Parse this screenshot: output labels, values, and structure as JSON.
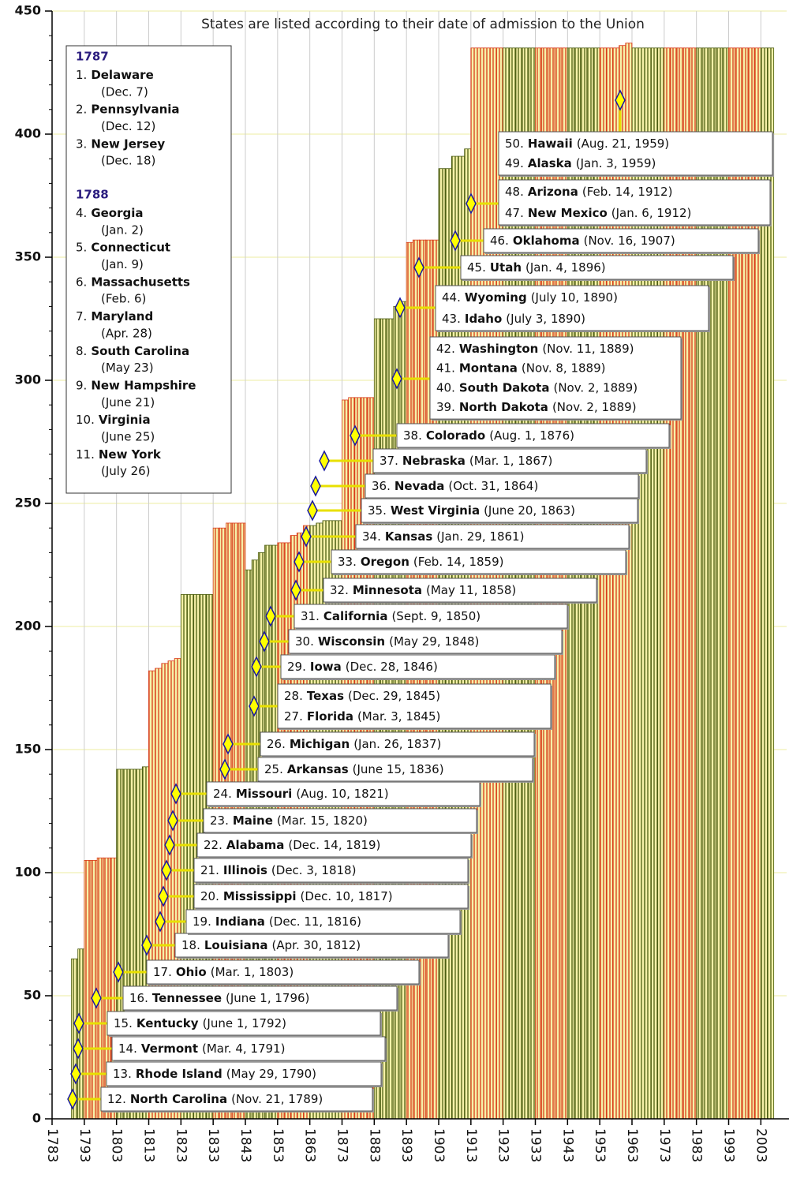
{
  "chart_data": {
    "type": "bar",
    "annotation": "States are listed according to their date of admission to the Union",
    "xlim": [
      1783,
      2011
    ],
    "xticks": [
      1783,
      1793,
      1803,
      1813,
      1823,
      1833,
      1843,
      1853,
      1863,
      1873,
      1883,
      1893,
      1903,
      1913,
      1923,
      1933,
      1943,
      1953,
      1963,
      1973,
      1983,
      1993,
      2003
    ],
    "ylim": [
      0,
      450
    ],
    "yticks": [
      0,
      50,
      100,
      150,
      200,
      250,
      300,
      350,
      400,
      450
    ],
    "yminorticks": [
      0,
      10,
      20,
      30,
      40,
      50,
      60,
      70,
      80,
      90,
      100,
      110,
      120,
      130,
      140,
      150,
      160,
      170,
      180,
      190,
      200,
      210,
      220,
      230,
      240,
      250,
      260,
      270,
      280,
      290,
      300,
      310,
      320,
      330,
      340,
      350,
      360,
      370,
      380,
      390,
      400,
      410,
      420,
      430,
      440,
      450
    ],
    "grid": true,
    "x": [
      1789,
      1791,
      1793,
      1795,
      1797,
      1799,
      1801,
      1803,
      1805,
      1807,
      1809,
      1811,
      1813,
      1815,
      1817,
      1819,
      1821,
      1823,
      1825,
      1827,
      1829,
      1831,
      1833,
      1835,
      1837,
      1839,
      1841,
      1843,
      1845,
      1847,
      1849,
      1851,
      1853,
      1855,
      1857,
      1859,
      1861,
      1863,
      1865,
      1867,
      1869,
      1871,
      1873,
      1875,
      1877,
      1879,
      1881,
      1883,
      1885,
      1887,
      1889,
      1891,
      1893,
      1895,
      1897,
      1899,
      1901,
      1903,
      1905,
      1907,
      1909,
      1911,
      1913,
      1915,
      1917,
      1919,
      1921,
      1923,
      1925,
      1927,
      1929,
      1931,
      1933,
      1935,
      1937,
      1939,
      1941,
      1943,
      1945,
      1947,
      1949,
      1951,
      1953,
      1955,
      1957,
      1959,
      1961,
      1963,
      1965,
      1967,
      1969,
      1971,
      1973,
      1975,
      1977,
      1979,
      1981,
      1983,
      1985,
      1987,
      1989,
      1991,
      1993,
      1995,
      1997,
      1999,
      2001,
      2003,
      2005
    ],
    "values": [
      65,
      69,
      105,
      105,
      106,
      106,
      106,
      142,
      142,
      142,
      142,
      143,
      182,
      183,
      185,
      186,
      187,
      213,
      213,
      213,
      213,
      213,
      240,
      240,
      242,
      242,
      242,
      223,
      227,
      230,
      233,
      233,
      234,
      234,
      237,
      238,
      241,
      241,
      242,
      243,
      243,
      243,
      292,
      293,
      293,
      293,
      293,
      325,
      325,
      325,
      330,
      332,
      356,
      357,
      357,
      357,
      357,
      386,
      386,
      391,
      391,
      394,
      435,
      435,
      435,
      435,
      435,
      435,
      435,
      435,
      435,
      435,
      435,
      435,
      435,
      435,
      435,
      435,
      435,
      435,
      435,
      435,
      435,
      435,
      435,
      436,
      437,
      435,
      435,
      435,
      435,
      435,
      435,
      435,
      435,
      435,
      435,
      435,
      435,
      435,
      435,
      435,
      435,
      435,
      435,
      435,
      435,
      435,
      435
    ],
    "colors": [
      "#4d5e12",
      "#4d5e12",
      "#d93b1a",
      "#d93b1a",
      "#d93b1a",
      "#d93b1a",
      "#d93b1a",
      "#4d5e12",
      "#4d5e12",
      "#4d5e12",
      "#4d5e12",
      "#4d5e12",
      "#d93b1a",
      "#d93b1a",
      "#d93b1a",
      "#d93b1a",
      "#d93b1a",
      "#4d5e12",
      "#4d5e12",
      "#4d5e12",
      "#4d5e12",
      "#4d5e12",
      "#d93b1a",
      "#d93b1a",
      "#d93b1a",
      "#d93b1a",
      "#d93b1a",
      "#4d5e12",
      "#4d5e12",
      "#4d5e12",
      "#4d5e12",
      "#4d5e12",
      "#d93b1a",
      "#d93b1a",
      "#d93b1a",
      "#d93b1a",
      "#d93b1a",
      "#4d5e12",
      "#4d5e12",
      "#4d5e12",
      "#4d5e12",
      "#4d5e12",
      "#d93b1a",
      "#d93b1a",
      "#d93b1a",
      "#d93b1a",
      "#d93b1a",
      "#4d5e12",
      "#4d5e12",
      "#4d5e12",
      "#4d5e12",
      "#4d5e12",
      "#d93b1a",
      "#d93b1a",
      "#d93b1a",
      "#d93b1a",
      "#d93b1a",
      "#4d5e12",
      "#4d5e12",
      "#4d5e12",
      "#4d5e12",
      "#4d5e12",
      "#d93b1a",
      "#d93b1a",
      "#d93b1a",
      "#d93b1a",
      "#d93b1a",
      "#4d5e12",
      "#4d5e12",
      "#4d5e12",
      "#4d5e12",
      "#4d5e12",
      "#d93b1a",
      "#d93b1a",
      "#d93b1a",
      "#d93b1a",
      "#d93b1a",
      "#4d5e12",
      "#4d5e12",
      "#4d5e12",
      "#4d5e12",
      "#4d5e12",
      "#d93b1a",
      "#d93b1a",
      "#d93b1a",
      "#d93b1a",
      "#d93b1a",
      "#4d5e12",
      "#4d5e12",
      "#4d5e12",
      "#4d5e12",
      "#4d5e12",
      "#d93b1a",
      "#d93b1a",
      "#d93b1a",
      "#d93b1a",
      "#d93b1a",
      "#4d5e12",
      "#4d5e12",
      "#4d5e12",
      "#4d5e12",
      "#4d5e12",
      "#d93b1a",
      "#d93b1a",
      "#d93b1a",
      "#d93b1a",
      "#d93b1a",
      "#4d5e12",
      "#4d5e12"
    ],
    "legend_box": [
      {
        "year": "1787",
        "states": [
          {
            "num": "1.",
            "name": "Delaware",
            "date": "(Dec. 7)"
          },
          {
            "num": "2.",
            "name": "Pennsylvania",
            "date": "(Dec. 12)"
          },
          {
            "num": "3.",
            "name": "New Jersey",
            "date": "(Dec. 18)"
          }
        ]
      },
      {
        "year": "1788",
        "states": [
          {
            "num": "4.",
            "name": "Georgia",
            "date": "(Jan. 2)"
          },
          {
            "num": "5.",
            "name": "Connecticut",
            "date": "(Jan. 9)"
          },
          {
            "num": "6.",
            "name": "Massachusetts",
            "date": "(Feb. 6)"
          },
          {
            "num": "7.",
            "name": "Maryland",
            "date": "(Apr. 28)"
          },
          {
            "num": "8.",
            "name": "South Carolina",
            "date": "(May 23)"
          },
          {
            "num": "9.",
            "name": "New Hampshire",
            "date": "(June 21)"
          },
          {
            "num": "10.",
            "name": "Virginia",
            "date": "(June 25)"
          },
          {
            "num": "11.",
            "name": "New York",
            "date": "(July 26)"
          }
        ]
      }
    ],
    "callouts": [
      [
        {
          "num": "12.",
          "name": "North Carolina",
          "date": "(Nov. 21, 1789)"
        }
      ],
      [
        {
          "num": "13.",
          "name": "Rhode Island",
          "date": "(May 29, 1790)"
        }
      ],
      [
        {
          "num": "14.",
          "name": "Vermont",
          "date": "(Mar. 4, 1791)"
        }
      ],
      [
        {
          "num": "15.",
          "name": "Kentucky",
          "date": "(June 1, 1792)"
        }
      ],
      [
        {
          "num": "16.",
          "name": "Tennessee",
          "date": "(June 1, 1796)"
        }
      ],
      [
        {
          "num": "17.",
          "name": "Ohio",
          "date": "(Mar. 1, 1803)"
        }
      ],
      [
        {
          "num": "18.",
          "name": "Louisiana",
          "date": "(Apr. 30, 1812)"
        }
      ],
      [
        {
          "num": "19.",
          "name": "Indiana",
          "date": "(Dec. 11, 1816)"
        }
      ],
      [
        {
          "num": "20.",
          "name": "Mississippi",
          "date": "(Dec. 10, 1817)"
        }
      ],
      [
        {
          "num": "21.",
          "name": "Illinois",
          "date": "(Dec. 3, 1818)"
        }
      ],
      [
        {
          "num": "22.",
          "name": "Alabama",
          "date": "(Dec. 14, 1819)"
        }
      ],
      [
        {
          "num": "23.",
          "name": "Maine",
          "date": "(Mar. 15, 1820)"
        }
      ],
      [
        {
          "num": "24.",
          "name": "Missouri",
          "date": "(Aug. 10, 1821)"
        }
      ],
      [
        {
          "num": "25.",
          "name": "Arkansas",
          "date": "(June 15, 1836)"
        }
      ],
      [
        {
          "num": "26.",
          "name": "Michigan",
          "date": "(Jan. 26, 1837)"
        }
      ],
      [
        {
          "num": "28.",
          "name": "Texas",
          "date": "(Dec. 29, 1845)"
        },
        {
          "num": "27.",
          "name": "Florida",
          "date": "(Mar. 3, 1845)"
        }
      ],
      [
        {
          "num": "29.",
          "name": "Iowa",
          "date": "(Dec. 28, 1846)"
        }
      ],
      [
        {
          "num": "30.",
          "name": "Wisconsin",
          "date": "(May 29, 1848)"
        }
      ],
      [
        {
          "num": "31.",
          "name": "California",
          "date": "(Sept. 9, 1850)"
        }
      ],
      [
        {
          "num": "32.",
          "name": "Minnesota",
          "date": "(May 11, 1858)"
        }
      ],
      [
        {
          "num": "33.",
          "name": "Oregon",
          "date": "(Feb. 14, 1859)"
        }
      ],
      [
        {
          "num": "34.",
          "name": "Kansas",
          "date": "(Jan. 29, 1861)"
        }
      ],
      [
        {
          "num": "35.",
          "name": "West Virginia",
          "date": "(June 20, 1863)"
        }
      ],
      [
        {
          "num": "36.",
          "name": "Nevada",
          "date": "(Oct. 31, 1864)"
        }
      ],
      [
        {
          "num": "37.",
          "name": "Nebraska",
          "date": "(Mar. 1, 1867)"
        }
      ],
      [
        {
          "num": "38.",
          "name": "Colorado",
          "date": "(Aug. 1, 1876)"
        }
      ],
      [
        {
          "num": "42.",
          "name": "Washington",
          "date": "(Nov. 11, 1889)"
        },
        {
          "num": "41.",
          "name": "Montana",
          "date": "(Nov. 8, 1889)"
        },
        {
          "num": "40.",
          "name": "South Dakota",
          "date": "(Nov. 2, 1889)"
        },
        {
          "num": "39.",
          "name": "North Dakota",
          "date": "(Nov. 2, 1889)"
        }
      ],
      [
        {
          "num": "44.",
          "name": "Wyoming",
          "date": "(July 10, 1890)"
        },
        {
          "num": "43.",
          "name": "Idaho",
          "date": "(July 3, 1890)"
        }
      ],
      [
        {
          "num": "45.",
          "name": "Utah",
          "date": "(Jan. 4, 1896)"
        }
      ],
      [
        {
          "num": "46.",
          "name": "Oklahoma",
          "date": "(Nov. 16, 1907)"
        }
      ],
      [
        {
          "num": "48.",
          "name": "Arizona",
          "date": "(Feb. 14, 1912)"
        },
        {
          "num": "47.",
          "name": "New Mexico",
          "date": "(Jan. 6, 1912)"
        }
      ],
      [
        {
          "num": "50.",
          "name": "Hawaii",
          "date": "(Aug. 21, 1959)"
        },
        {
          "num": "49.",
          "name": "Alaska",
          "date": "(Jan. 3, 1959)"
        }
      ]
    ]
  }
}
